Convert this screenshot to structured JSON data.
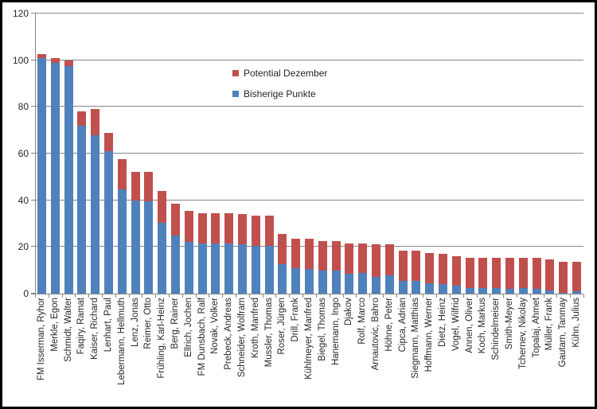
{
  "chart_data": {
    "type": "bar",
    "stacked": true,
    "title": "",
    "xlabel": "",
    "ylabel": "",
    "ylim": [
      0,
      120
    ],
    "yticks": [
      0,
      20,
      40,
      60,
      80,
      100,
      120
    ],
    "grid": true,
    "legend_position": "inside-top-center",
    "categories": [
      "FM Isserman, Ryhor",
      "Merkle, Egon",
      "Schmidt, Walter",
      "Faqiry, Ramat",
      "Kaiser, Richard",
      "Lenhart, Paul",
      "Lebermann, Hellmuth",
      "Lenz, Jonas",
      "Reimer, Otto",
      "Frühling, Karl-Heinz",
      "Berg, Rainer",
      "Ellrich, Jochen",
      "FM Dunsbach, Ralf",
      "Novak, Volker",
      "Prebeck, Andreas",
      "Schneider, Wolfram",
      "Kroth, Manfred",
      "Mussler, Thomas",
      "Roser, Jürgen",
      "Drill, Frank",
      "Kühlmeyer, Manfred",
      "Biegel, Thomas",
      "Hanemann, Ingo",
      "Djakov",
      "Rolf, Marco",
      "Arnautovic, Bahro",
      "Höhne, Peter",
      "Cipca, Adrian",
      "Siegmann, Matthias",
      "Hoffmann, Werner",
      "Dietz, Heinz",
      "Vogel, Wilfrid",
      "Annen, Oliver",
      "Koch, Markus",
      "Schindelmeiser",
      "Smith-Meyer",
      "Tchernev, Nikolay",
      "Topalaj, Ahmet",
      "Müller, Frank",
      "Gautam, Tanmay",
      "Kühn, Julius"
    ],
    "series": [
      {
        "name": "Bisherige Punkte",
        "color": "#4F81BD",
        "values": [
          101,
          99,
          97.5,
          72,
          68,
          61,
          44.5,
          40,
          39.5,
          30.5,
          25,
          22,
          21.5,
          21.5,
          21.5,
          21,
          20.5,
          20.5,
          12.5,
          11,
          10.5,
          10,
          10,
          8.5,
          9,
          7,
          8,
          5.5,
          5.5,
          4.5,
          4,
          3.5,
          2.5,
          2.5,
          2.5,
          2,
          2.5,
          2,
          1.5,
          0.5,
          1
        ]
      },
      {
        "name": "Potential Dezember",
        "color": "#C0504D",
        "values": [
          1.5,
          2,
          2.5,
          6,
          11,
          8,
          13,
          12,
          12.5,
          13.5,
          13.5,
          13.5,
          13,
          13,
          13,
          13,
          13,
          13,
          13,
          12.5,
          13,
          12.5,
          12.5,
          13,
          12.5,
          14,
          13,
          13,
          13,
          13,
          13,
          12.5,
          13,
          13,
          13,
          13.5,
          13,
          13.5,
          13,
          13,
          12.5
        ]
      }
    ],
    "colors": {
      "gridline": "#878787",
      "axis": "#878787",
      "text": "#262626",
      "background": "#FFFFFF",
      "border": "#000000"
    }
  },
  "legend": {
    "items": [
      {
        "label": "Potential Dezember",
        "color": "#C0504D"
      },
      {
        "label": "Bisherige Punkte",
        "color": "#4F81BD"
      }
    ]
  }
}
